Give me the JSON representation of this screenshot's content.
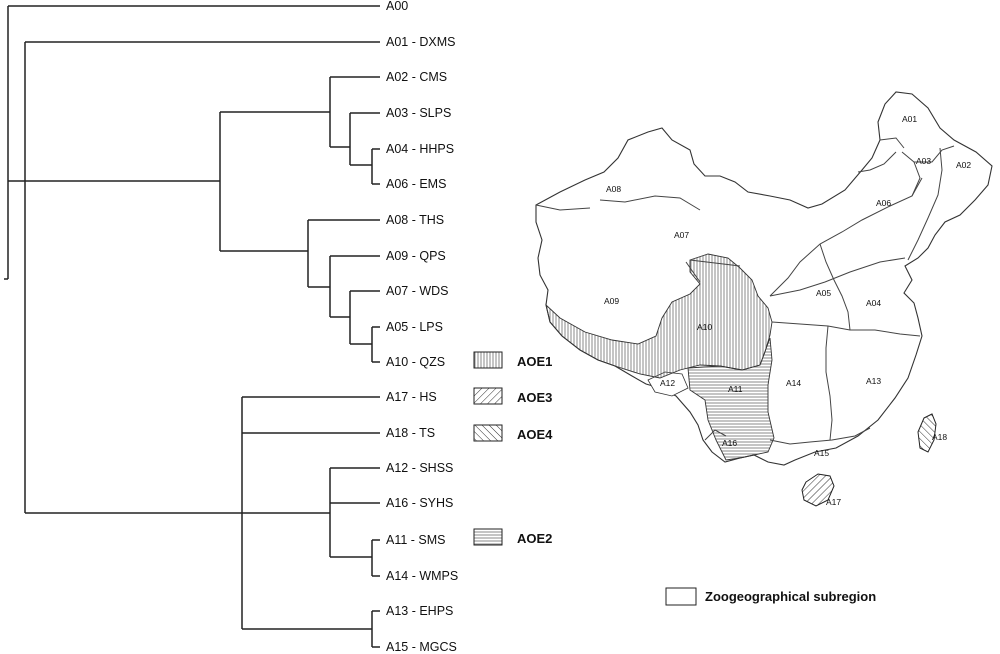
{
  "tree": {
    "tips": [
      {
        "label": "A00"
      },
      {
        "label": "A01 - DXMS"
      },
      {
        "label": "A02 - CMS"
      },
      {
        "label": "A03 - SLPS"
      },
      {
        "label": "A04 - HHPS"
      },
      {
        "label": "A06 - EMS"
      },
      {
        "label": "A08 - THS"
      },
      {
        "label": "A09 - QPS"
      },
      {
        "label": "A07 - WDS"
      },
      {
        "label": "A05 - LPS"
      },
      {
        "label": "A10 - QZS"
      },
      {
        "label": "A17 - HS"
      },
      {
        "label": "A18 - TS"
      },
      {
        "label": "A12 - SHSS"
      },
      {
        "label": "A16 - SYHS"
      },
      {
        "label": "A11 - SMS"
      },
      {
        "label": "A14 - WMPS"
      },
      {
        "label": "A13 - EHPS"
      },
      {
        "label": "A15 - MGCS"
      }
    ],
    "aoe_markers": [
      {
        "label": "AOE1",
        "pattern": "vertical-hatch"
      },
      {
        "label": "AOE3",
        "pattern": "diagonal-hatch"
      },
      {
        "label": "AOE4",
        "pattern": "back-diagonal-hatch"
      },
      {
        "label": "AOE2",
        "pattern": "horizontal-hatch"
      }
    ]
  },
  "map": {
    "regions": [
      "A01",
      "A02",
      "A03",
      "A04",
      "A05",
      "A06",
      "A07",
      "A08",
      "A09",
      "A10",
      "A11",
      "A12",
      "A13",
      "A14",
      "A15",
      "A16",
      "A17",
      "A18"
    ],
    "legend_label": "Zoogeographical subregion"
  },
  "colors": {
    "line": "#222222",
    "background": "#ffffff"
  }
}
